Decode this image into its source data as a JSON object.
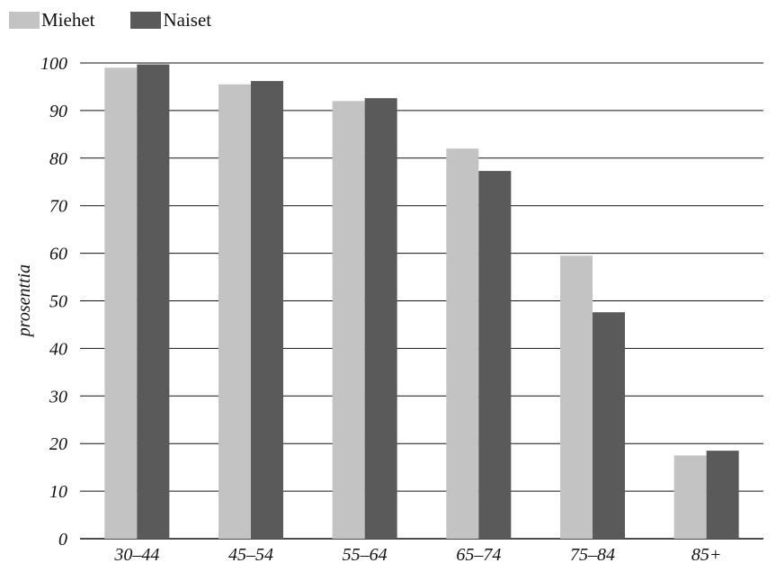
{
  "colors": {
    "Miehet": "#c3c3c3",
    "Naiset": "#5a5a5a",
    "grid": "#111111"
  },
  "chart_data": {
    "type": "bar",
    "categories": [
      "30–44",
      "45–54",
      "55–64",
      "65–74",
      "75–84",
      "85+"
    ],
    "series": [
      {
        "name": "Miehet",
        "values": [
          99,
          95.5,
          92,
          82,
          59.5,
          17.5
        ]
      },
      {
        "name": "Naiset",
        "values": [
          99.7,
          96.2,
          92.6,
          77.3,
          47.6,
          18.5
        ]
      }
    ],
    "ylabel": "prosenttia",
    "ylim": [
      0,
      100
    ],
    "yticks": [
      "0",
      "10",
      "20",
      "30",
      "40",
      "50",
      "60",
      "70",
      "80",
      "90",
      "100"
    ],
    "grid": true,
    "legend_position": "top-left"
  }
}
